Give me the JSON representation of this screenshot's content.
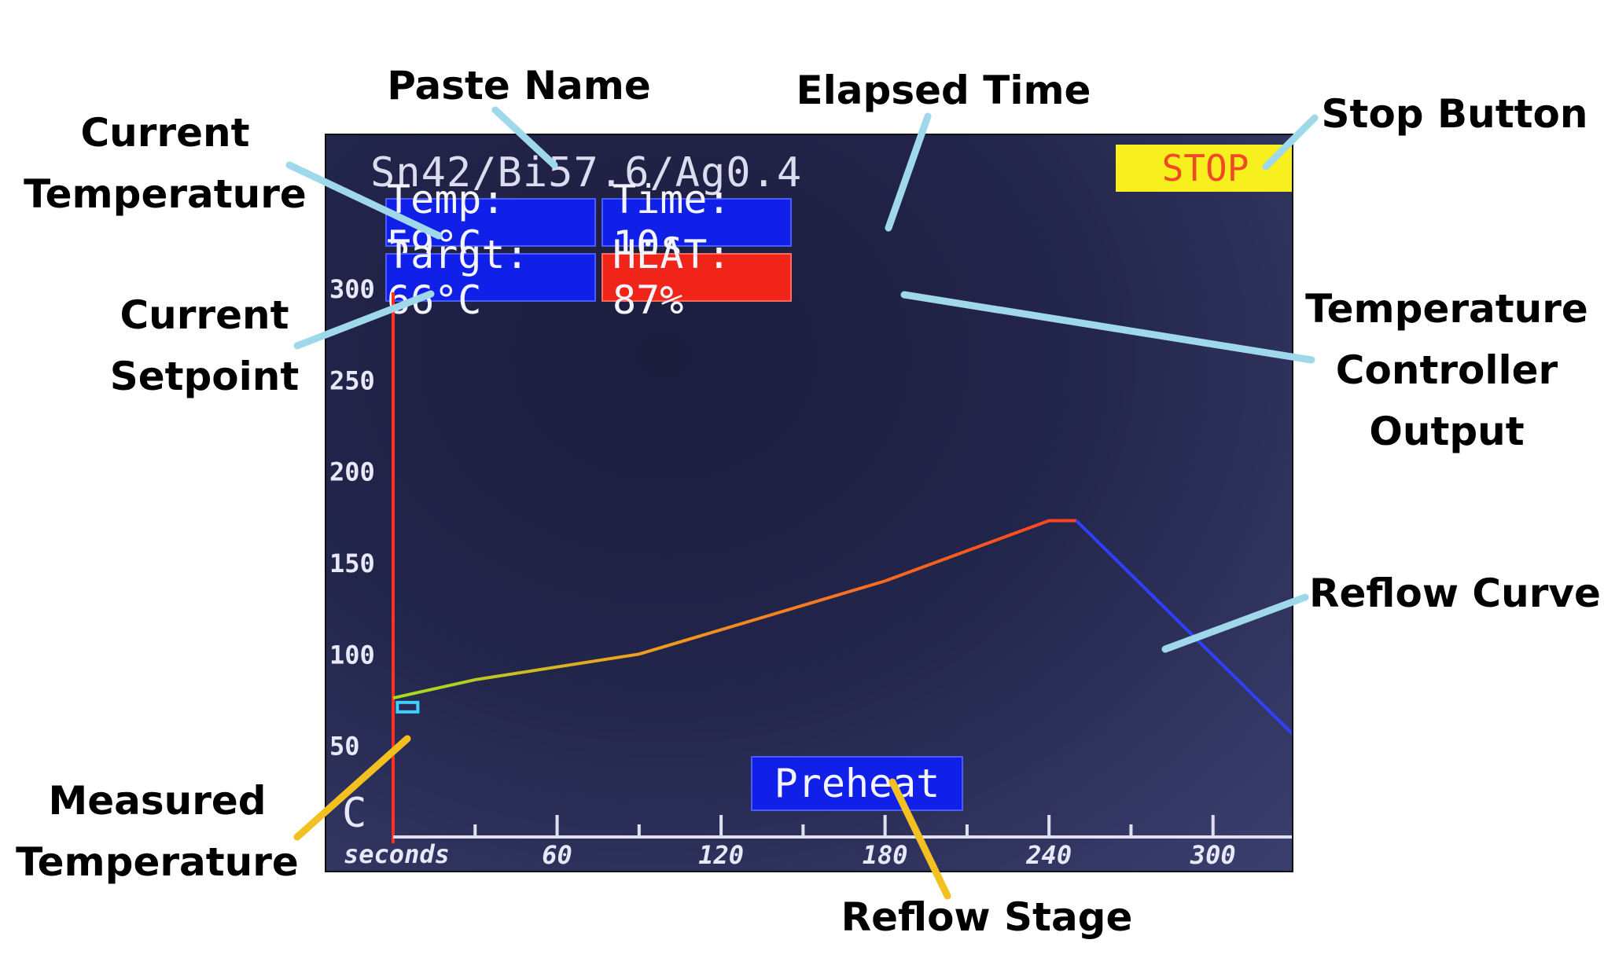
{
  "screen": {
    "paste_name": "Sn42/Bi57.6/Ag0.4",
    "temp_label": "Temp: 59°C",
    "time_label": "Time: 10s",
    "target_label": "Targt: 66°C",
    "heat_label": "HEAT: 87%",
    "stop_label": "STOP",
    "stage_label": "Preheat",
    "axis_unit_y": "C",
    "axis_unit_x": "seconds"
  },
  "annotations": {
    "paste_name": "Paste Name",
    "elapsed_time": "Elapsed Time",
    "stop_button": "Stop Button",
    "current_temperature": [
      "Current",
      "Temperature"
    ],
    "current_setpoint": [
      "Current",
      "Setpoint"
    ],
    "controller_output": [
      "Temperature",
      "Controller",
      "Output"
    ],
    "reflow_curve": "Reflow Curve",
    "measured_temperature": [
      "Measured",
      "Temperature"
    ],
    "reflow_stage": "Reflow Stage"
  },
  "colors": {
    "box_blue": "#1020e8",
    "heat_red": "#f02418",
    "stop_yellow": "#f7ef1e",
    "stop_text": "#ef4a26",
    "axis_red": "#ff3020",
    "curve_done": "#ff4020",
    "curve_future": "#3040ff",
    "measured": "#40d0ff",
    "callout_blue": "#9ed8ea",
    "callout_yellow": "#f2c020"
  },
  "chart_data": {
    "type": "line",
    "x_ticks": [
      60,
      120,
      180,
      240,
      300
    ],
    "y_ticks": [
      50,
      100,
      150,
      200,
      250,
      300
    ],
    "xlim": [
      0,
      330
    ],
    "ylim": [
      0,
      300
    ],
    "series": [
      {
        "points": [
          [
            0,
            76
          ],
          [
            30,
            86
          ],
          [
            90,
            100
          ],
          [
            180,
            140
          ],
          [
            240,
            173
          ],
          [
            250,
            173
          ],
          [
            330,
            55
          ]
        ]
      }
    ],
    "completed_until_x": 250,
    "measured_point": [
      5,
      71
    ]
  }
}
